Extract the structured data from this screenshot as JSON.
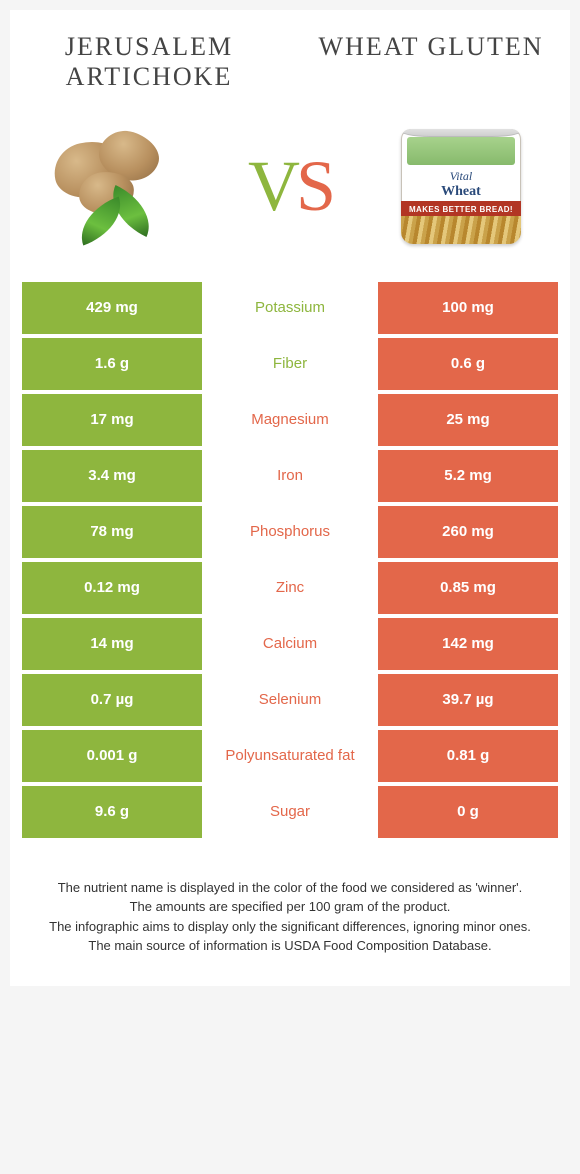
{
  "title_left": "JERUSALEM ARTICHOKE",
  "title_right": "WHEAT GLUTEN",
  "vs_v": "V",
  "vs_s": "S",
  "colors": {
    "green": "#8eb63e",
    "orange": "#e3674a",
    "row_bg": "#ffffff",
    "text_white": "#ffffff"
  },
  "can": {
    "line1": "Vital",
    "line2": "Wheat Gluten",
    "band": "MAKES BETTER BREAD!"
  },
  "rows": [
    {
      "left": "429 mg",
      "label": "Potassium",
      "right": "100 mg",
      "winner": "left"
    },
    {
      "left": "1.6 g",
      "label": "Fiber",
      "right": "0.6 g",
      "winner": "left"
    },
    {
      "left": "17 mg",
      "label": "Magnesium",
      "right": "25 mg",
      "winner": "right"
    },
    {
      "left": "3.4 mg",
      "label": "Iron",
      "right": "5.2 mg",
      "winner": "right"
    },
    {
      "left": "78 mg",
      "label": "Phosphorus",
      "right": "260 mg",
      "winner": "right"
    },
    {
      "left": "0.12 mg",
      "label": "Zinc",
      "right": "0.85 mg",
      "winner": "right"
    },
    {
      "left": "14 mg",
      "label": "Calcium",
      "right": "142 mg",
      "winner": "right"
    },
    {
      "left": "0.7 µg",
      "label": "Selenium",
      "right": "39.7 µg",
      "winner": "right"
    },
    {
      "left": "0.001 g",
      "label": "Polyunsaturated fat",
      "right": "0.81 g",
      "winner": "right"
    },
    {
      "left": "9.6 g",
      "label": "Sugar",
      "right": "0 g",
      "winner": "right"
    }
  ],
  "footer": [
    "The nutrient name is displayed in the color of the food we considered as 'winner'.",
    "The amounts are specified per 100 gram of the product.",
    "The infographic aims to display only the significant differences, ignoring minor ones.",
    "The main source of information is USDA Food Composition Database."
  ]
}
